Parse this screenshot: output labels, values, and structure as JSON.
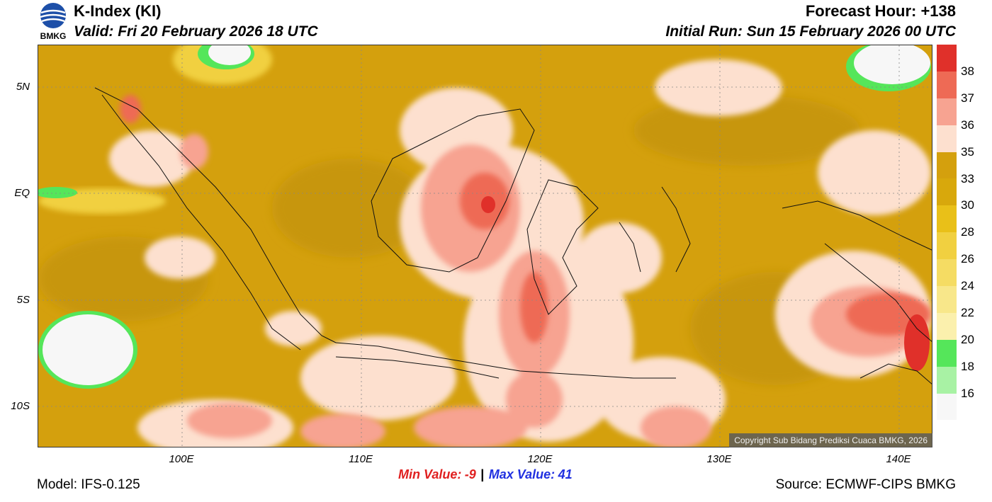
{
  "header": {
    "logo_text": "BMKG",
    "title": "K-Index (KI)",
    "valid": "Valid: Fri 20 February 2026 18 UTC",
    "forecast_hour": "Forecast Hour: +138",
    "initial_run": "Initial Run: Sun 15 February 2026 00 UTC"
  },
  "map": {
    "lat_labels": [
      "5N",
      "EQ",
      "5S",
      "10S"
    ],
    "lon_labels": [
      "100E",
      "110E",
      "120E",
      "130E",
      "140E"
    ],
    "copyright": "Copyright Sub Bidang Prediksi Cuaca BMKG, 2026"
  },
  "colorbar": {
    "labels": [
      "38",
      "37",
      "36",
      "35",
      "33",
      "30",
      "28",
      "26",
      "24",
      "22",
      "20",
      "18",
      "16"
    ],
    "colors": [
      "#e0302a",
      "#ee6a55",
      "#f7a391",
      "#fde0cf",
      "#d4a00d",
      "#d8a80c",
      "#e9c018",
      "#f1d040",
      "#f5dc63",
      "#f8e78a",
      "#fbf0ad",
      "#55e65a",
      "#a8f2a4",
      "#f7f7f7"
    ]
  },
  "stats": {
    "min_label": "Min Value:",
    "min_value": "-9",
    "separator": "|",
    "max_label": "Max Value:",
    "max_value": "41"
  },
  "footer": {
    "model": "Model: IFS-0.125",
    "source": "Source: ECMWF-CIPS BMKG"
  }
}
